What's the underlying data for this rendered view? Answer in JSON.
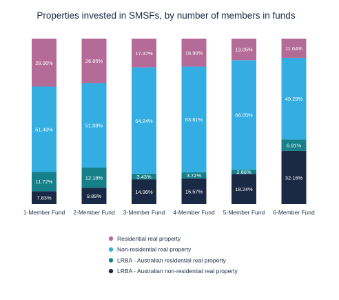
{
  "chart_data": {
    "type": "bar",
    "stacked": true,
    "percent_stacked": true,
    "title": "Properties invested in SMSFs, by number of members in funds",
    "xlabel": "",
    "ylabel": "",
    "ylim": [
      0,
      100
    ],
    "grid": false,
    "legend_position": "bottom",
    "categories": [
      "1-Member Fund",
      "2-Member Fund",
      "3-Member Fund",
      "4-Member Fund",
      "5-Member Fund",
      "6-Member Fund"
    ],
    "series": [
      {
        "name": "LRBA - Australian non-residential real property",
        "color": "#1b2a44",
        "values": [
          7.83,
          9.89,
          14.96,
          15.57,
          18.24,
          32.16
        ],
        "labels": [
          "7.83%",
          "9.89%",
          "14.96%",
          "15.57%",
          "18.24%",
          "32.16%"
        ]
      },
      {
        "name": "LRBA - Australian residential real property",
        "color": "#15808a",
        "values": [
          11.72,
          12.18,
          3.43,
          3.72,
          2.66,
          6.91
        ],
        "labels": [
          "11.72%",
          "12.18%",
          "3.43%",
          "3.72%",
          "2.66%",
          "6.91%"
        ]
      },
      {
        "name": "Non-residential real property",
        "color": "#34ade2",
        "values": [
          51.49,
          51.08,
          64.24,
          63.81,
          66.05,
          49.29
        ],
        "labels": [
          "51.49%",
          "51.08%",
          "64.24%",
          "63.81%",
          "66.05%",
          "49.29%"
        ]
      },
      {
        "name": "Residential real property",
        "color": "#b46b97",
        "values": [
          28.96,
          26.85,
          17.37,
          16.9,
          13.05,
          11.64
        ],
        "labels": [
          "28.96%",
          "26.85%",
          "17.37%",
          "16.90%",
          "13.05%",
          "11.64%"
        ]
      }
    ],
    "legend_order": [
      "Residential real property",
      "Non-residential real property",
      "LRBA - Australian residential real property",
      "LRBA - Australian non-residential real property"
    ]
  }
}
